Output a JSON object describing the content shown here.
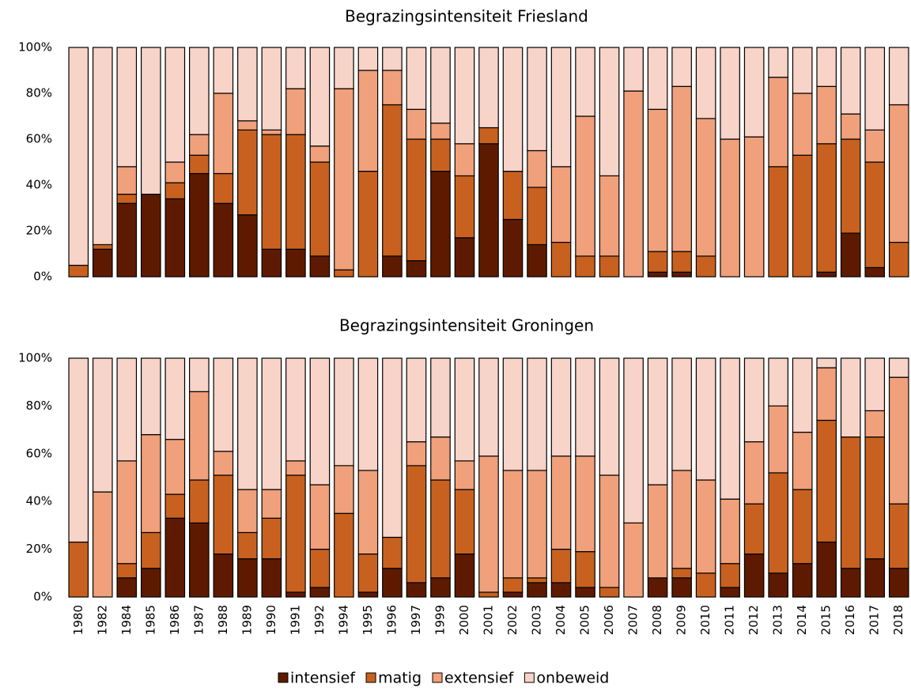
{
  "legend": [
    {
      "name": "intensief",
      "color": "#5e1a00"
    },
    {
      "name": "matig",
      "color": "#c8611f"
    },
    {
      "name": "extensief",
      "color": "#f0a07a"
    },
    {
      "name": "onbeweid",
      "color": "#f8d3c8"
    }
  ],
  "chart_data": [
    {
      "type": "stacked_bar",
      "title": "Begrazingsintensiteit Friesland",
      "ylim": [
        0,
        100
      ],
      "yticks": [
        {
          "value": 0,
          "label": "0%"
        },
        {
          "value": 20,
          "label": "20%"
        },
        {
          "value": 40,
          "label": "40%"
        },
        {
          "value": 60,
          "label": "60%"
        },
        {
          "value": 80,
          "label": "80%"
        },
        {
          "value": 100,
          "label": "100%"
        }
      ],
      "series": [
        {
          "values": [
            0,
            12,
            32,
            36,
            34,
            45,
            32,
            27,
            12,
            12,
            9,
            0,
            0,
            9,
            7,
            46,
            17,
            58,
            25,
            14,
            0,
            0,
            0,
            0,
            2,
            2,
            0,
            0,
            0,
            0,
            0,
            2,
            19,
            4,
            0
          ]
        },
        {
          "values": [
            5,
            2,
            4,
            0,
            7,
            8,
            13,
            37,
            50,
            50,
            41,
            3,
            46,
            66,
            53,
            14,
            27,
            7,
            21,
            25,
            15,
            9,
            9,
            0,
            9,
            9,
            9,
            0,
            0,
            48,
            53,
            56,
            41,
            46,
            15
          ]
        },
        {
          "values": [
            0,
            0,
            12,
            0,
            9,
            9,
            35,
            4,
            2,
            20,
            7,
            79,
            44,
            15,
            13,
            7,
            14,
            0,
            0,
            16,
            33,
            61,
            35,
            81,
            62,
            72,
            60,
            60,
            61,
            39,
            27,
            25,
            11,
            14,
            60
          ]
        },
        {
          "values": [
            95,
            86,
            52,
            64,
            50,
            38,
            20,
            32,
            36,
            18,
            43,
            18,
            10,
            10,
            27,
            33,
            42,
            35,
            54,
            45,
            52,
            30,
            56,
            19,
            27,
            17,
            31,
            40,
            39,
            13,
            20,
            17,
            29,
            36,
            25
          ]
        }
      ]
    },
    {
      "type": "stacked_bar",
      "title": "Begrazingsintensiteit Groningen",
      "categories": [
        "1980",
        "1982",
        "1984",
        "1985",
        "1986",
        "1987",
        "1988",
        "1989",
        "1990",
        "1991",
        "1992",
        "1994",
        "1995",
        "1996",
        "1997",
        "1999",
        "2000",
        "2001",
        "2002",
        "2003",
        "2004",
        "2005",
        "2006",
        "2007",
        "2008",
        "2009",
        "2010",
        "2011",
        "2012",
        "2013",
        "2014",
        "2015",
        "2016",
        "2017",
        "2018"
      ],
      "ylim": [
        0,
        100
      ],
      "yticks": [
        {
          "value": 0,
          "label": "0%"
        },
        {
          "value": 20,
          "label": "20%"
        },
        {
          "value": 40,
          "label": "40%"
        },
        {
          "value": 60,
          "label": "60%"
        },
        {
          "value": 80,
          "label": "80%"
        },
        {
          "value": 100,
          "label": "100%"
        }
      ],
      "series": [
        {
          "values": [
            0,
            0,
            8,
            12,
            33,
            31,
            18,
            16,
            16,
            2,
            4,
            0,
            2,
            12,
            6,
            8,
            18,
            0,
            2,
            6,
            6,
            4,
            0,
            0,
            8,
            8,
            0,
            4,
            18,
            10,
            14,
            23,
            12,
            16,
            12
          ]
        },
        {
          "values": [
            23,
            0,
            6,
            15,
            10,
            18,
            33,
            11,
            17,
            49,
            16,
            35,
            16,
            13,
            49,
            41,
            27,
            2,
            6,
            2,
            14,
            15,
            4,
            0,
            0,
            4,
            10,
            10,
            21,
            42,
            31,
            51,
            55,
            51,
            27
          ]
        },
        {
          "values": [
            0,
            44,
            43,
            41,
            23,
            37,
            10,
            18,
            12,
            6,
            27,
            20,
            35,
            0,
            10,
            18,
            12,
            57,
            45,
            45,
            39,
            40,
            47,
            31,
            39,
            41,
            39,
            27,
            26,
            28,
            24,
            22,
            0,
            11,
            53
          ]
        },
        {
          "values": [
            77,
            56,
            43,
            32,
            34,
            14,
            39,
            55,
            55,
            43,
            53,
            45,
            47,
            75,
            35,
            33,
            43,
            41,
            47,
            47,
            41,
            41,
            49,
            69,
            53,
            47,
            51,
            59,
            35,
            20,
            31,
            4,
            33,
            22,
            8
          ]
        }
      ]
    }
  ]
}
